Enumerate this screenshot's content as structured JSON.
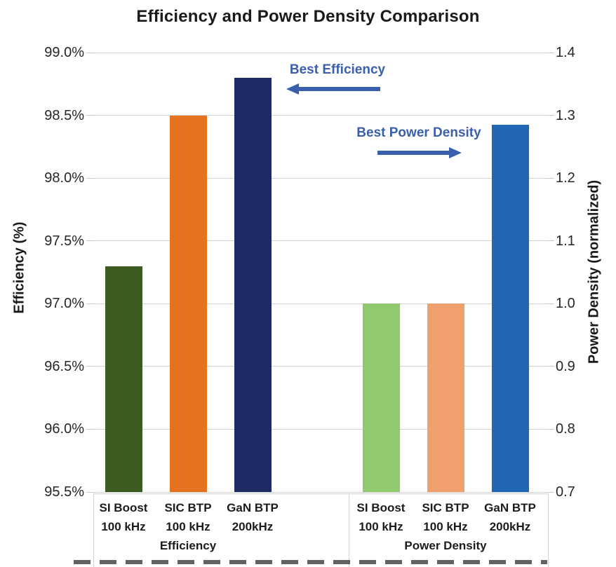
{
  "annotations": {
    "best_efficiency": "Best Efficiency",
    "best_power_density": "Best Power Density"
  },
  "colors": {
    "annotation_blue": "#3a5fad",
    "gridline": "#d2d2d2",
    "bar_dark_green": "#3b5b21",
    "bar_orange": "#e5721f",
    "bar_navy": "#1e2b64",
    "bar_light_green": "#90c96f",
    "bar_light_orange": "#f0a06c",
    "bar_blue": "#2066b2"
  },
  "chart_data": {
    "type": "bar",
    "title": "Efficiency and Power Density Comparison",
    "gridlines": true,
    "legend": "none",
    "left_axis": {
      "label": "Efficiency (%)",
      "min": 95.5,
      "max": 99.0,
      "tick_step": 0.5,
      "ticks": [
        "99.0%",
        "98.5%",
        "98.0%",
        "97.5%",
        "97.0%",
        "96.5%",
        "96.0%",
        "95.5%"
      ]
    },
    "right_axis": {
      "label": "Power Density (normalized)",
      "min": 0.7,
      "max": 1.4,
      "tick_step": 0.1,
      "ticks": [
        "1.4",
        "1.3",
        "1.2",
        "1.1",
        "1.0",
        "0.9",
        "0.8",
        "0.7"
      ]
    },
    "groups": [
      {
        "label": "Efficiency",
        "value_axis": "left",
        "bars": [
          {
            "category": "SI Boost",
            "frequency": "100 kHz",
            "value": 97.3,
            "color": "#3b5b21"
          },
          {
            "category": "SIC BTP",
            "frequency": "100 kHz",
            "value": 98.5,
            "color": "#e5721f"
          },
          {
            "category": "GaN BTP",
            "frequency": "200kHz",
            "value": 98.8,
            "color": "#1e2b64"
          }
        ]
      },
      {
        "label": "Power Density",
        "value_axis": "right",
        "bars": [
          {
            "category": "SI Boost",
            "frequency": "100 kHz",
            "value": 1.0,
            "color": "#90c96f"
          },
          {
            "category": "SIC BTP",
            "frequency": "100 kHz",
            "value": 1.0,
            "color": "#f0a06c"
          },
          {
            "category": "GaN BTP",
            "frequency": "200kHz",
            "value": 1.285,
            "color": "#2066b2"
          }
        ]
      }
    ]
  }
}
